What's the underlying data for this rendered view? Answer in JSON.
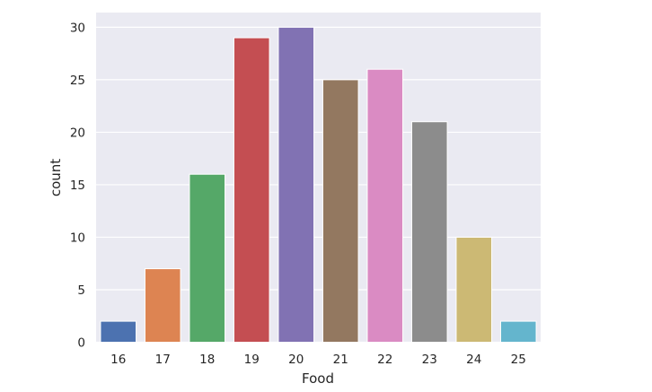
{
  "chart_data": {
    "type": "bar",
    "xlabel": "Food",
    "ylabel": "count",
    "categories": [
      "16",
      "17",
      "18",
      "19",
      "20",
      "21",
      "22",
      "23",
      "24",
      "25"
    ],
    "values": [
      2,
      7,
      16,
      29,
      30,
      25,
      26,
      21,
      10,
      2
    ],
    "colors": [
      "#4c72b0",
      "#dd8452",
      "#55a868",
      "#c44e52",
      "#8172b3",
      "#937860",
      "#da8bc3",
      "#8c8c8c",
      "#ccb974",
      "#64b5cd"
    ],
    "yticks": [
      0,
      5,
      10,
      15,
      20,
      25,
      30
    ],
    "ylim": [
      0,
      31.4
    ],
    "grid": true,
    "background": "#eaeaf2"
  }
}
